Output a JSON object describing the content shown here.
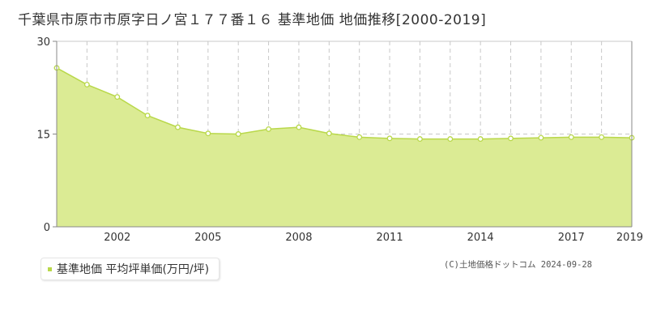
{
  "title": "千葉県市原市市原字日ノ宮１７７番１６ 基準地価 地価推移[2000-2019]",
  "legend": {
    "label": "基準地価 平均坪単価(万円/坪)"
  },
  "credit": "(C)土地価格ドットコム 2024-09-28",
  "colors": {
    "fill": "#dbeb94",
    "line": "#b9d84a",
    "marker_fill": "#ffffff",
    "grid": "#c8c8c8"
  },
  "chart_data": {
    "type": "area",
    "x": [
      2000,
      2001,
      2002,
      2003,
      2004,
      2005,
      2006,
      2007,
      2008,
      2009,
      2010,
      2011,
      2012,
      2013,
      2014,
      2015,
      2016,
      2017,
      2018,
      2019
    ],
    "series": [
      {
        "values": [
          25.7,
          23.0,
          21.0,
          18.0,
          16.1,
          15.1,
          15.0,
          15.8,
          16.1,
          15.1,
          14.5,
          14.3,
          14.2,
          14.2,
          14.2,
          14.3,
          14.4,
          14.5,
          14.5,
          14.4
        ]
      }
    ],
    "xlim": [
      2000,
      2019
    ],
    "ylim": [
      0,
      30
    ],
    "yticks": [
      "0",
      "15",
      "30"
    ],
    "xticks": [
      "2002",
      "2005",
      "2008",
      "2011",
      "2014",
      "2017",
      "2019"
    ],
    "grid": true,
    "legend_position": "bottom-left"
  }
}
